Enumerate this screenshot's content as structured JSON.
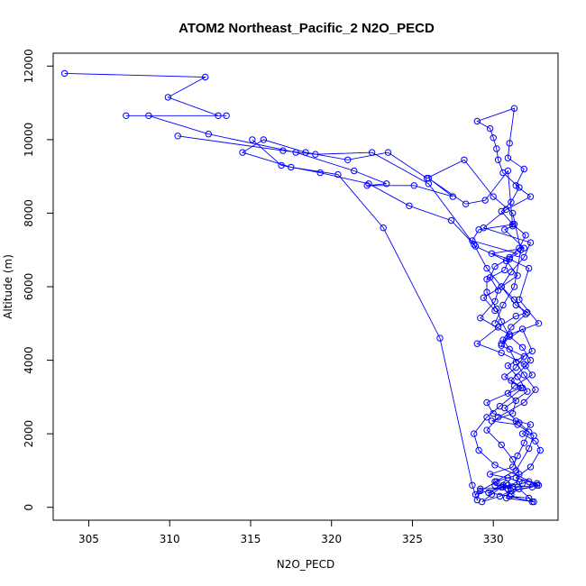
{
  "chart_data": {
    "type": "line",
    "title": "ATOM2 Northeast_Pacific_2 N2O_PECD",
    "xlabel": "N2O_PECD",
    "ylabel": "Altitude (m)",
    "xlim": [
      302.8,
      334.0
    ],
    "ylim": [
      -350,
      12350
    ],
    "x_ticks": [
      305,
      310,
      315,
      320,
      325,
      330
    ],
    "y_ticks": [
      0,
      2000,
      4000,
      6000,
      8000,
      10000,
      12000
    ],
    "grid": false,
    "legend": "none",
    "color": "#0000ff",
    "marker": "open-circle",
    "series": [
      {
        "x": [
          303.5,
          312.2,
          309.9,
          313.0,
          307.3,
          313.5,
          308.7,
          312.4,
          317.8,
          321.4,
          323.4,
          322.2,
          325.1,
          327.5,
          326.0,
          328.3,
          329.5,
          330.9,
          331.2,
          330.7,
          331.9,
          329.9,
          331.0,
          332.2,
          331.6,
          332.8,
          331.0,
          330.5,
          331.8,
          332.4,
          330.9,
          331.5,
          332.1,
          330.7,
          331.4,
          332.3,
          331.8,
          332.6,
          332.9,
          332.3,
          331.4,
          332.7,
          332.4,
          331.1,
          330.8,
          332.5,
          331.6,
          331.1,
          330.9,
          330.6,
          330.8,
          330.5,
          329.9,
          329.3,
          330.4,
          331.1,
          332.8,
          330.1,
          329.1,
          328.8,
          329.6,
          330.4,
          331.8,
          331.1,
          332.0,
          332.3,
          331.8,
          331.0,
          330.5,
          330.2,
          329.6,
          329.6,
          330.7,
          331.0,
          331.6,
          332.0,
          331.2,
          330.5,
          331.1,
          331.6,
          330.6,
          330.3,
          330.2,
          330.0,
          329.8,
          329.0,
          331.3,
          331.0,
          330.9,
          331.9,
          331.4,
          332.3,
          330.8,
          329.4,
          332.3,
          331.9,
          331.1,
          330.5,
          329.4,
          330.1
        ],
        "y": [
          11800,
          11700,
          11150,
          10650,
          10650,
          10650,
          10650,
          10150,
          9650,
          9150,
          8800,
          8750,
          8750,
          8450,
          8950,
          8250,
          8350,
          9150,
          7650,
          7550,
          7050,
          6900,
          6750,
          6500,
          5650,
          5000,
          4700,
          4450,
          4850,
          4250,
          3850,
          3550,
          3150,
          2700,
          2350,
          2250,
          2000,
          1800,
          1550,
          1100,
          800,
          650,
          550,
          450,
          250,
          150,
          500,
          350,
          500,
          600,
          650,
          550,
          350,
          150,
          300,
          450,
          600,
          1150,
          1550,
          2000,
          2450,
          2750,
          3250,
          3450,
          3850,
          4000,
          4350,
          4650,
          5050,
          5400,
          5850,
          6200,
          6450,
          6800,
          7050,
          7400,
          7700,
          8050,
          8300,
          8700,
          9100,
          9450,
          9750,
          10050,
          10300,
          10500,
          10850,
          9900,
          9500,
          9200,
          8750,
          8450,
          8100,
          7600,
          7200,
          6800,
          6400,
          6000,
          5700,
          5350
        ]
      },
      {
        "x": [
          310.5,
          317.0,
          319.0,
          322.5,
          326.0,
          328.8,
          329.6,
          331.4,
          332.1,
          331.4,
          330.3,
          329.0,
          330.5,
          331.9,
          332.4,
          331.3,
          330.9,
          331.4,
          331.2,
          329.9,
          331.5,
          332.5,
          332.2,
          331.4,
          330.1,
          330.1,
          331.2,
          329.2,
          328.9,
          330.9,
          331.5,
          332.7,
          332.2,
          331.8,
          330.5,
          329.7,
          331.0,
          332.2,
          332.4,
          331.0,
          330.6,
          331.6,
          330.9,
          329.8,
          331.2,
          331.5,
          331.9,
          332.2,
          331.6,
          330.0,
          329.6,
          331.7,
          330.7,
          331.4,
          331.9,
          330.5,
          331.0,
          329.2,
          330.1,
          330.3,
          329.8,
          330.1,
          331.5,
          328.7,
          329.1,
          331.3
        ],
        "y": [
          10100,
          9700,
          9600,
          9650,
          8800,
          7150,
          6500,
          5500,
          5300,
          5200,
          4900,
          4450,
          4200,
          3900,
          3600,
          3300,
          3100,
          2900,
          2550,
          2350,
          2250,
          1950,
          1600,
          1000,
          700,
          600,
          550,
          500,
          350,
          600,
          550,
          600,
          700,
          650,
          550,
          400,
          300,
          250,
          150,
          300,
          550,
          700,
          800,
          900,
          1100,
          1400,
          1750,
          2050,
          2300,
          2550,
          2850,
          3250,
          3550,
          3800,
          4100,
          4400,
          4700,
          5150,
          5600,
          5900,
          6250,
          6550,
          6900,
          7250,
          7550,
          7700
        ]
      },
      {
        "x": [
          315.1,
          316.9,
          319.3,
          322.3,
          324.8,
          327.4,
          328.9,
          330.8,
          331.5,
          330.5,
          331.3,
          332.0,
          331.1,
          330.6,
          331.0,
          331.4,
          331.9,
          332.6,
          331.9,
          330.3,
          329.6,
          330.5,
          331.2,
          331.6,
          330.2,
          329.2,
          329.0,
          328.7,
          326.7,
          323.2,
          320.4,
          317.5,
          314.5,
          315.8,
          318.4,
          321.0,
          323.5,
          325.9,
          328.2,
          330.0,
          331.2,
          331.7,
          331.3,
          330.6,
          330.1
        ],
        "y": [
          10000,
          9300,
          9100,
          8800,
          8200,
          7800,
          7100,
          6700,
          6300,
          6000,
          5650,
          5250,
          4900,
          4550,
          4300,
          3950,
          3600,
          3200,
          2850,
          2450,
          2100,
          1700,
          1300,
          900,
          700,
          450,
          200,
          600,
          4600,
          7600,
          9050,
          9250,
          9650,
          10000,
          9650,
          9450,
          9650,
          8950,
          9450,
          8450,
          8000,
          7000,
          6000,
          5500,
          5000
        ]
      }
    ]
  }
}
